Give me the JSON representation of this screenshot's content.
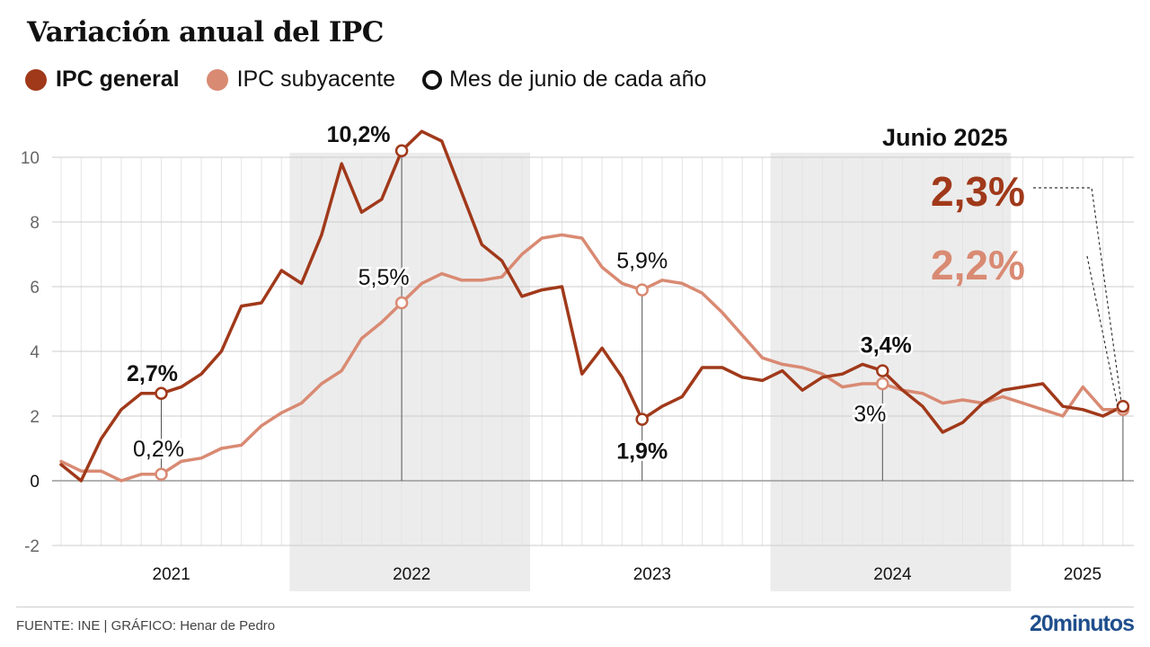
{
  "title": "Variación anual del IPC",
  "legend": {
    "general": "IPC general",
    "subyacente": "IPC subyacente",
    "june_marker": "Mes de junio de cada año"
  },
  "colors": {
    "general": "#a0391a",
    "subyacente": "#d98a73",
    "shade": "#ececec",
    "grid": "#cccccc",
    "text": "#111111",
    "logo": "#1f4e8c"
  },
  "june_callout": {
    "title": "Junio 2025",
    "general": "2,3%",
    "subyacente": "2,2%"
  },
  "footer": {
    "source": "FUENTE: INE  |  GRÁFICO: Henar de Pedro",
    "logo": "20minutos"
  },
  "chart_data": {
    "type": "line",
    "title": "Variación anual del IPC",
    "xlabel": "",
    "ylabel": "",
    "ylim": [
      -2,
      10
    ],
    "yticks": [
      -2,
      0,
      2,
      4,
      6,
      8,
      10
    ],
    "grid": true,
    "legend_position": "top-left",
    "x_start": "2021-01",
    "x_end": "2025-06",
    "year_labels": [
      "2021",
      "2022",
      "2023",
      "2024",
      "2025"
    ],
    "shaded_years": [
      "2022",
      "2024"
    ],
    "series": [
      {
        "name": "IPC general",
        "values": [
          0.5,
          0.0,
          1.3,
          2.2,
          2.7,
          2.7,
          2.9,
          3.3,
          4.0,
          5.4,
          5.5,
          6.5,
          6.1,
          7.6,
          9.8,
          8.3,
          8.7,
          10.2,
          10.8,
          10.5,
          8.9,
          7.3,
          6.8,
          5.7,
          5.9,
          6.0,
          3.3,
          4.1,
          3.2,
          1.9,
          2.3,
          2.6,
          3.5,
          3.5,
          3.2,
          3.1,
          3.4,
          2.8,
          3.2,
          3.3,
          3.6,
          3.4,
          2.8,
          2.3,
          1.5,
          1.8,
          2.4,
          2.8,
          2.9,
          3.0,
          2.3,
          2.2,
          2.0,
          2.3
        ],
        "annotations": [
          {
            "month": "2021-06",
            "label": "2,7%"
          },
          {
            "month": "2022-06",
            "label": "10,2%"
          },
          {
            "month": "2023-06",
            "label": "1,9%"
          },
          {
            "month": "2024-06",
            "label": "3,4%"
          }
        ]
      },
      {
        "name": "IPC subyacente",
        "values": [
          0.6,
          0.3,
          0.3,
          0.0,
          0.2,
          0.2,
          0.6,
          0.7,
          1.0,
          1.1,
          1.7,
          2.1,
          2.4,
          3.0,
          3.4,
          4.4,
          4.9,
          5.5,
          6.1,
          6.4,
          6.2,
          6.2,
          6.3,
          7.0,
          7.5,
          7.6,
          7.5,
          6.6,
          6.1,
          5.9,
          6.2,
          6.1,
          5.8,
          5.2,
          4.5,
          3.8,
          3.6,
          3.5,
          3.3,
          2.9,
          3.0,
          3.0,
          2.8,
          2.7,
          2.4,
          2.5,
          2.4,
          2.6,
          2.4,
          2.2,
          2.0,
          2.9,
          2.2,
          2.2
        ],
        "annotations": [
          {
            "month": "2021-06",
            "label": "0,2%"
          },
          {
            "month": "2022-06",
            "label": "5,5%"
          },
          {
            "month": "2023-06",
            "label": "5,9%"
          },
          {
            "month": "2024-06",
            "label": "3%"
          }
        ]
      }
    ]
  }
}
